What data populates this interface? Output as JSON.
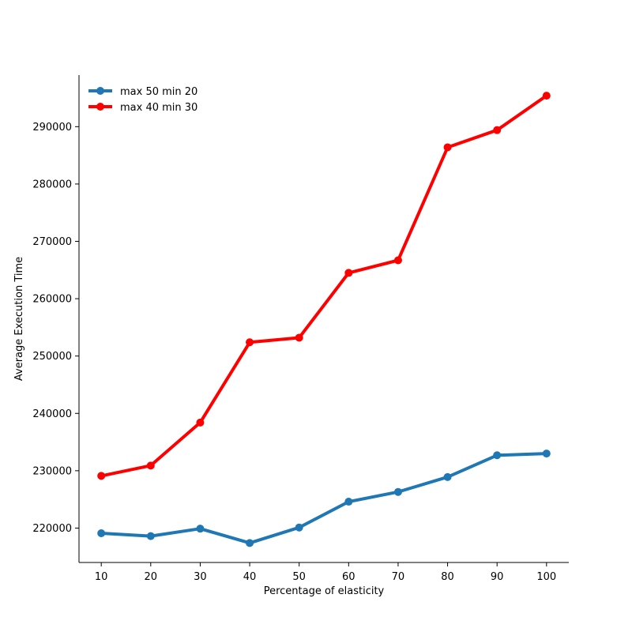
{
  "chart_data": {
    "type": "line",
    "title": "",
    "xlabel": "Percentage of elasticity",
    "ylabel": "Average Execution Time",
    "x": [
      10,
      20,
      30,
      40,
      50,
      60,
      70,
      80,
      90,
      100
    ],
    "xlim": [
      5.5,
      104.5
    ],
    "ylim": [
      214000,
      299000
    ],
    "yticks": [
      220000,
      230000,
      240000,
      250000,
      260000,
      270000,
      280000,
      290000
    ],
    "grid": false,
    "legend_position": "top-left",
    "series": [
      {
        "name": "max 50 min 20",
        "color": "#1f77b4",
        "values": [
          219100,
          218600,
          219900,
          217400,
          220100,
          224600,
          226300,
          228900,
          232700,
          233000
        ]
      },
      {
        "name": "max 40 min 30",
        "color": "#ff0000",
        "values": [
          229100,
          230900,
          238400,
          252400,
          253200,
          264500,
          266700,
          286400,
          289400,
          295400
        ]
      }
    ]
  }
}
